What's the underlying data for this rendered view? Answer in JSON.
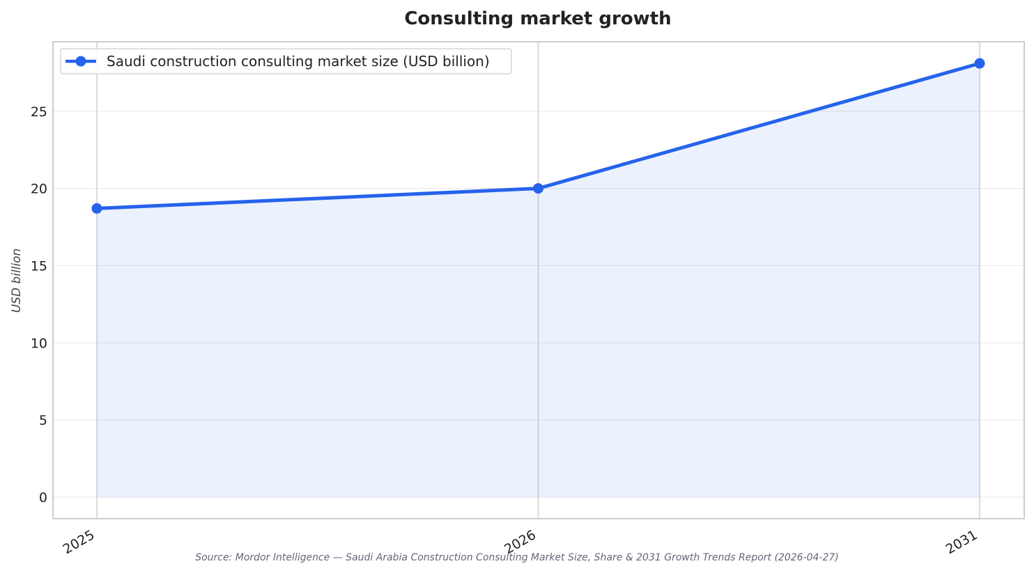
{
  "chart_data": {
    "type": "area",
    "title": "Consulting market growth",
    "xlabel": "",
    "ylabel": "USD billion",
    "categories": [
      "2025",
      "2026",
      "2031"
    ],
    "series": [
      {
        "name": "Saudi construction consulting market size (USD billion)",
        "values": [
          18.7,
          20.0,
          28.1
        ],
        "color": "#2563eb",
        "fill_color": "#2563eb"
      }
    ],
    "yticks": [
      0,
      5,
      10,
      15,
      20,
      25
    ],
    "ylim": [
      -1.4,
      29.5
    ],
    "grid": true,
    "legend_position": "top-left",
    "source": "Source: Mordor Intelligence — Saudi Arabia Construction Consulting Market Size, Share & 2031 Growth Trends Report (2026-04-27)"
  }
}
